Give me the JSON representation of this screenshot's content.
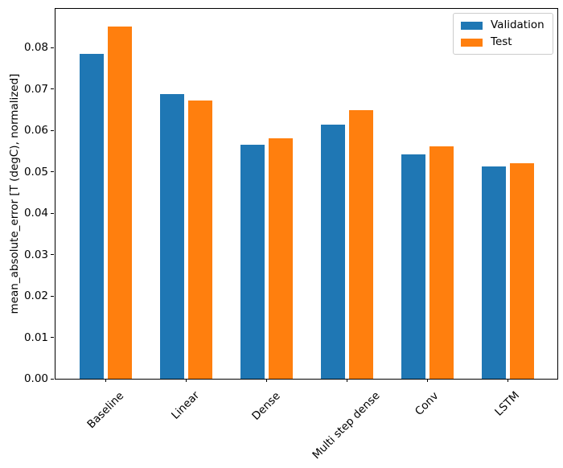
{
  "chart_data": {
    "type": "bar",
    "title": "",
    "xlabel": "",
    "ylabel": "mean_absolute_error [T (degC), normalized]",
    "categories": [
      "Baseline",
      "Linear",
      "Dense",
      "Multi step dense",
      "Conv",
      "LSTM"
    ],
    "series": [
      {
        "name": "Validation",
        "color": "#1f77b4",
        "values": [
          0.0785,
          0.0689,
          0.0566,
          0.0614,
          0.0542,
          0.0514
        ]
      },
      {
        "name": "Test",
        "color": "#ff7f0e",
        "values": [
          0.0852,
          0.0673,
          0.0581,
          0.065,
          0.0561,
          0.0521
        ]
      }
    ],
    "ylim": [
      0,
      0.0894
    ],
    "yticks": [
      0,
      0.01,
      0.02,
      0.03,
      0.04,
      0.05,
      0.06,
      0.07,
      0.08
    ],
    "ytick_labels": [
      "0.00",
      "0.01",
      "0.02",
      "0.03",
      "0.04",
      "0.05",
      "0.06",
      "0.07",
      "0.08"
    ],
    "x_tick_rotation_deg": 45,
    "grid": false,
    "legend_position": "upper right"
  }
}
